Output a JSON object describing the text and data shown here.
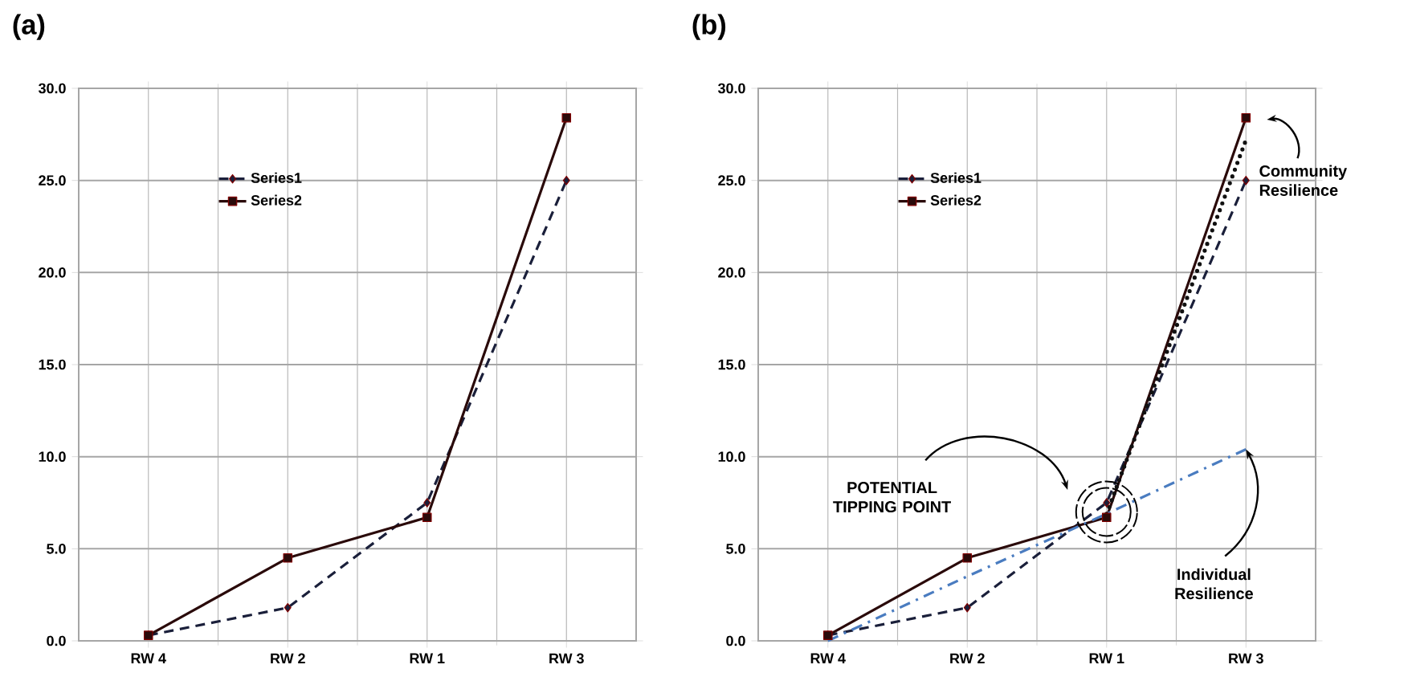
{
  "chart_data": [
    {
      "type": "line",
      "title": "(a)",
      "categories": [
        "RW 4",
        "RW 2",
        "RW 1",
        "RW 3"
      ],
      "ylim": [
        0,
        30
      ],
      "yticks": [
        {
          "value": 0,
          "label": "0.0"
        },
        {
          "value": 5,
          "label": "5.0"
        },
        {
          "value": 10,
          "label": "10.0"
        },
        {
          "value": 15,
          "label": "15.0"
        },
        {
          "value": 20,
          "label": "20.0"
        },
        {
          "value": 25,
          "label": "25.0"
        },
        {
          "value": 30,
          "label": "30.0"
        }
      ],
      "grid": true,
      "legend": "top left",
      "series": [
        {
          "name": "Series1",
          "color": "#1a1f3a",
          "values": [
            0.3,
            1.8,
            7.5,
            25.0
          ],
          "marker": "diamond",
          "line_style": "dashed"
        },
        {
          "name": "Series2",
          "color": "#2a0a0a",
          "values": [
            0.3,
            4.5,
            6.7,
            28.4
          ],
          "marker": "square",
          "line_style": "solid"
        }
      ]
    },
    {
      "type": "line",
      "title": "(b)",
      "categories": [
        "RW 4",
        "RW 2",
        "RW 1",
        "RW 3"
      ],
      "ylim": [
        0,
        30
      ],
      "yticks": [
        {
          "value": 0,
          "label": "0.0"
        },
        {
          "value": 5,
          "label": "5.0"
        },
        {
          "value": 10,
          "label": "10.0"
        },
        {
          "value": 15,
          "label": "15.0"
        },
        {
          "value": 20,
          "label": "20.0"
        },
        {
          "value": 25,
          "label": "25.0"
        },
        {
          "value": 30,
          "label": "30.0"
        }
      ],
      "grid": true,
      "legend": "top left",
      "series": [
        {
          "name": "Series1",
          "color": "#1a1f3a",
          "values": [
            0.3,
            1.8,
            7.5,
            25.0
          ],
          "marker": "diamond",
          "line_style": "dashed"
        },
        {
          "name": "Series2",
          "color": "#2a0a0a",
          "values": [
            0.3,
            4.5,
            6.7,
            28.4
          ],
          "marker": "square",
          "line_style": "solid"
        },
        {
          "type": "line",
          "color": "#111111",
          "values": [
            null,
            null,
            6.9,
            27.2
          ],
          "marker": "none",
          "line_style": "dotted"
        },
        {
          "type": "line",
          "color": "#4a7cc0",
          "values": [
            0,
            3.5,
            6.9,
            10.4
          ],
          "marker": "none",
          "line_style": "dashdot"
        }
      ],
      "annotations": [
        "POTENTIAL TIPPING POINT",
        "Community Resilience",
        {
          "text": "Individual Resilience",
          "x": "RW 3",
          "y": 10.4
        }
      ]
    }
  ]
}
